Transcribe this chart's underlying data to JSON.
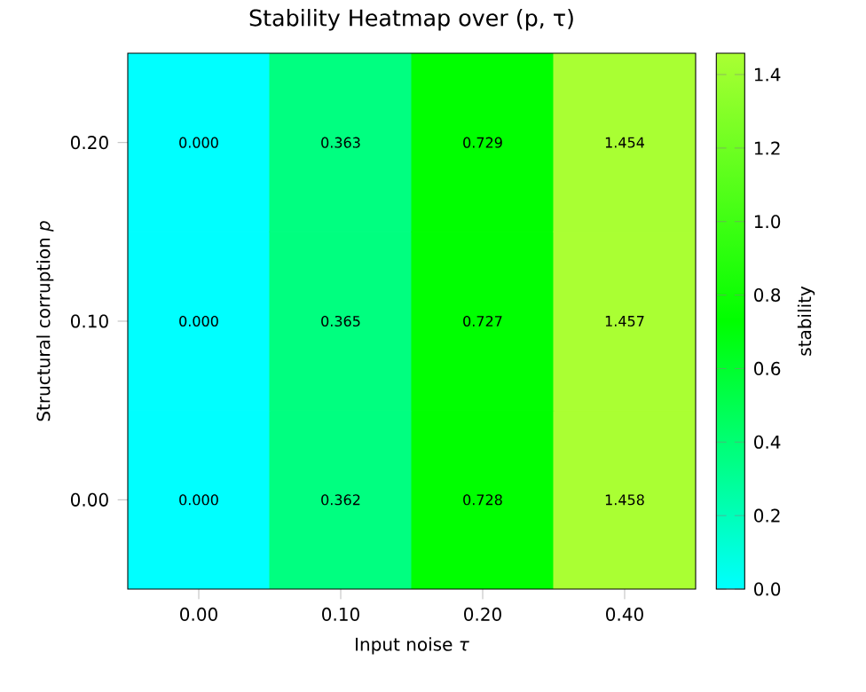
{
  "chart_data": {
    "type": "heatmap",
    "title": "Stability Heatmap over (p, τ)",
    "xlabel": "Input noise *τ*",
    "ylabel": "Structural corruption *p*",
    "clabel": "stability",
    "categories": [
      "0.00",
      "0.10",
      "0.20",
      "0.40"
    ],
    "y_categories": [
      "0.20",
      "0.10",
      "0.00"
    ],
    "cells": [
      [
        0.0,
        0.363,
        0.729,
        1.454
      ],
      [
        0.0,
        0.365,
        0.727,
        1.457
      ],
      [
        0.0,
        0.362,
        0.728,
        1.458
      ]
    ],
    "cell_labels": [
      [
        "0.000",
        "0.363",
        "0.729",
        "1.454"
      ],
      [
        "0.000",
        "0.365",
        "0.727",
        "1.457"
      ],
      [
        "0.000",
        "0.362",
        "0.728",
        "1.458"
      ]
    ],
    "clim": [
      0,
      1.458
    ],
    "cticks": [
      {
        "value": 0,
        "label": "0.0"
      },
      {
        "value": 0.2,
        "label": "0.2"
      },
      {
        "value": 0.4,
        "label": "0.4"
      },
      {
        "value": 0.6,
        "label": "0.6"
      },
      {
        "value": 0.8,
        "label": "0.8"
      },
      {
        "value": 1,
        "label": "1.0"
      },
      {
        "value": 1.2,
        "label": "1.2"
      },
      {
        "value": 1.4,
        "label": "1.4"
      }
    ]
  }
}
